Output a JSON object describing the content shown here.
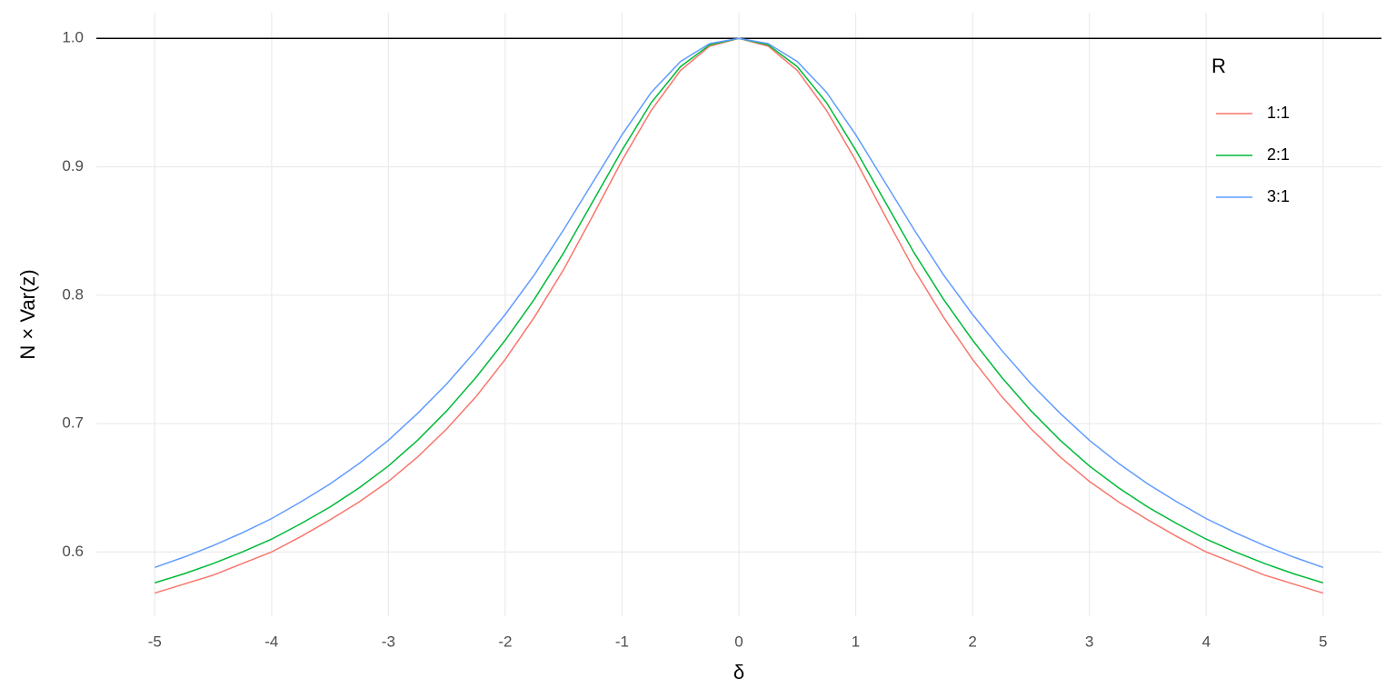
{
  "chart_data": {
    "type": "line",
    "x_label": "δ",
    "y_label": "N × Var(z)",
    "legend_title": "R",
    "legend_position": "top-right",
    "x": [
      -5,
      -4.75,
      -4.5,
      -4.25,
      -4,
      -3.75,
      -3.5,
      -3.25,
      -3,
      -2.75,
      -2.5,
      -2.25,
      -2,
      -1.75,
      -1.5,
      -1.25,
      -1,
      -0.75,
      -0.5,
      -0.25,
      0,
      0.25,
      0.5,
      0.75,
      1,
      1.25,
      1.5,
      1.75,
      2,
      2.25,
      2.5,
      2.75,
      3,
      3.25,
      3.5,
      3.75,
      4,
      4.25,
      4.5,
      4.75,
      5
    ],
    "series": [
      {
        "name": "1:1",
        "color": "#F8766D",
        "values": [
          0.568,
          0.575,
          0.582,
          0.591,
          0.6,
          0.612,
          0.625,
          0.639,
          0.655,
          0.674,
          0.696,
          0.721,
          0.75,
          0.783,
          0.82,
          0.862,
          0.905,
          0.944,
          0.975,
          0.994,
          1.0,
          0.994,
          0.975,
          0.944,
          0.905,
          0.862,
          0.82,
          0.783,
          0.75,
          0.721,
          0.696,
          0.674,
          0.655,
          0.639,
          0.625,
          0.612,
          0.6,
          0.591,
          0.582,
          0.575,
          0.568
        ]
      },
      {
        "name": "2:1",
        "color": "#00BA38",
        "values": [
          0.576,
          0.583,
          0.591,
          0.6,
          0.61,
          0.622,
          0.635,
          0.65,
          0.667,
          0.687,
          0.71,
          0.736,
          0.765,
          0.797,
          0.833,
          0.873,
          0.913,
          0.95,
          0.978,
          0.995,
          1.0,
          0.995,
          0.978,
          0.95,
          0.913,
          0.873,
          0.833,
          0.797,
          0.765,
          0.736,
          0.71,
          0.687,
          0.667,
          0.65,
          0.635,
          0.622,
          0.61,
          0.6,
          0.591,
          0.583,
          0.576
        ]
      },
      {
        "name": "3:1",
        "color": "#619CFF",
        "values": [
          0.588,
          0.596,
          0.605,
          0.615,
          0.626,
          0.639,
          0.653,
          0.669,
          0.687,
          0.708,
          0.731,
          0.757,
          0.785,
          0.816,
          0.851,
          0.888,
          0.925,
          0.958,
          0.982,
          0.996,
          1.0,
          0.996,
          0.982,
          0.958,
          0.925,
          0.888,
          0.851,
          0.816,
          0.785,
          0.757,
          0.731,
          0.708,
          0.687,
          0.669,
          0.653,
          0.639,
          0.626,
          0.615,
          0.605,
          0.596,
          0.588
        ]
      }
    ],
    "hline": 1,
    "xlim": [
      -5.5,
      5.5
    ],
    "xticks": [
      -5,
      -4,
      -3,
      -2,
      -1,
      0,
      1,
      2,
      3,
      4,
      5
    ],
    "ylim": [
      0.55,
      1.02
    ],
    "yticks": [
      0.6,
      0.7,
      0.8,
      0.9,
      {
        "value": 1,
        "label": "1.0"
      }
    ],
    "grid": true
  }
}
